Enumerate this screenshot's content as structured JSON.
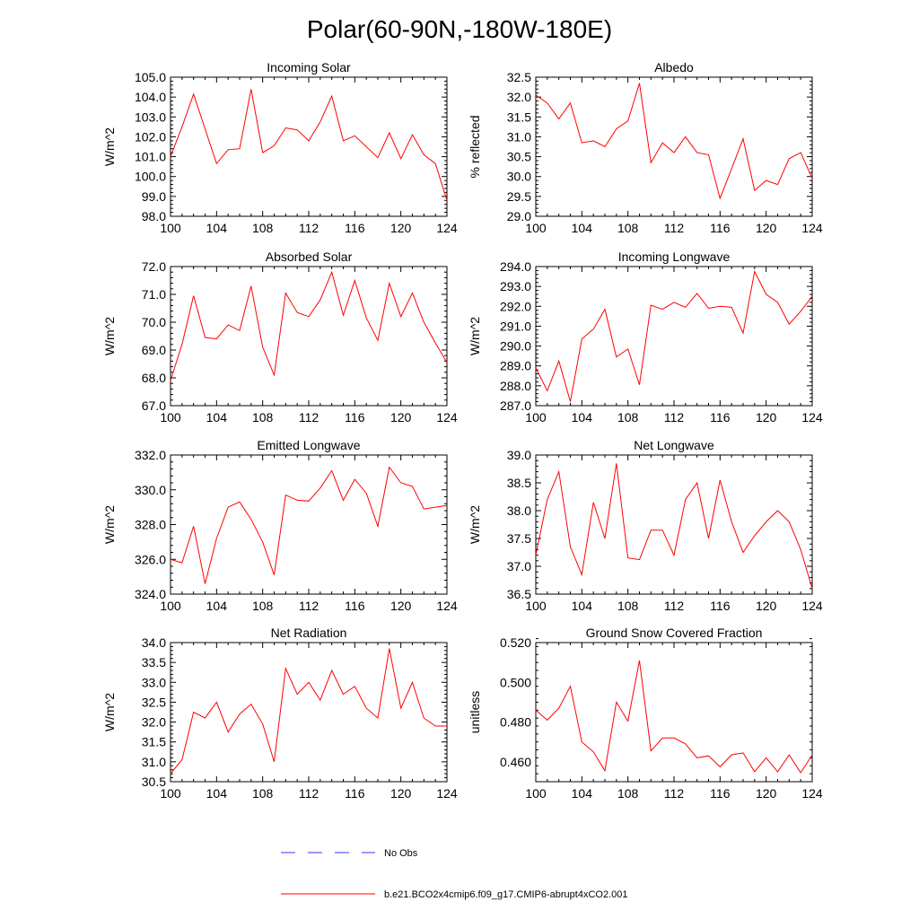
{
  "figure": {
    "title": "Polar(60-90N,-180W-180E)",
    "legend": {
      "obs_label": "No Obs",
      "model_label": "b.e21.BCO2x4cmip6.f09_g17.CMIP6-abrupt4xCO2.001"
    }
  },
  "colors": {
    "model": "#ff0000",
    "obs": "#3333ff",
    "axis": "#000000"
  },
  "chart_data": [
    {
      "type": "line",
      "title": "Incoming Solar",
      "ylabel": "W/m^2",
      "xlabel": "",
      "xlim": [
        100,
        124
      ],
      "ylim": [
        98,
        105
      ],
      "yticks": [
        98,
        99,
        100,
        101,
        102,
        103,
        104,
        105
      ],
      "ytick_labels": [
        "98.0",
        "99.0",
        "100.0",
        "101.0",
        "102.0",
        "103.0",
        "104.0",
        "105.0"
      ],
      "xticks": [
        100,
        104,
        108,
        112,
        116,
        120,
        124
      ],
      "xtick_labels": [
        "100",
        "104",
        "108",
        "112",
        "116",
        "120",
        "124"
      ],
      "series": [
        {
          "name": "b.e21.BCO2x4cmip6.f09_g17.CMIP6-abrupt4xCO2.001",
          "x": [
            100,
            101,
            102,
            103,
            104,
            105,
            106,
            107,
            108,
            109,
            110,
            111,
            112,
            113,
            114,
            115,
            116,
            117,
            118,
            119,
            120,
            121,
            122,
            123,
            124
          ],
          "values": [
            101.0,
            102.5,
            104.15,
            102.4,
            100.65,
            101.35,
            101.4,
            104.4,
            101.2,
            101.55,
            102.45,
            102.35,
            101.8,
            102.75,
            104.05,
            101.8,
            102.05,
            101.5,
            100.95,
            102.2,
            100.9,
            102.1,
            101.1,
            100.65,
            98.8
          ]
        }
      ]
    },
    {
      "type": "line",
      "title": "Albedo",
      "ylabel": "% reflected",
      "xlabel": "",
      "xlim": [
        100,
        124
      ],
      "ylim": [
        29,
        32.5
      ],
      "yticks": [
        29,
        29.5,
        30,
        30.5,
        31,
        31.5,
        32,
        32.5
      ],
      "ytick_labels": [
        "29.0",
        "29.5",
        "30.0",
        "30.5",
        "31.0",
        "31.5",
        "32.0",
        "32.5"
      ],
      "xticks": [
        100,
        104,
        108,
        112,
        116,
        120,
        124
      ],
      "xtick_labels": [
        "100",
        "104",
        "108",
        "112",
        "116",
        "120",
        "124"
      ],
      "series": [
        {
          "name": "b.e21.BCO2x4cmip6.f09_g17.CMIP6-abrupt4xCO2.001",
          "x": [
            100,
            101,
            102,
            103,
            104,
            105,
            106,
            107,
            108,
            109,
            110,
            111,
            112,
            113,
            114,
            115,
            116,
            117,
            118,
            119,
            120,
            121,
            122,
            123,
            124
          ],
          "values": [
            32.05,
            31.85,
            31.45,
            31.85,
            30.85,
            30.9,
            30.75,
            31.2,
            31.4,
            32.35,
            30.35,
            30.85,
            30.6,
            31.0,
            30.6,
            30.55,
            29.45,
            30.2,
            30.95,
            29.65,
            29.9,
            29.8,
            30.45,
            30.6,
            29.95
          ]
        }
      ]
    },
    {
      "type": "line",
      "title": "Absorbed Solar",
      "ylabel": "W/m^2",
      "xlabel": "",
      "xlim": [
        100,
        124
      ],
      "ylim": [
        67,
        72
      ],
      "yticks": [
        67,
        68,
        69,
        70,
        71,
        72
      ],
      "ytick_labels": [
        "67.0",
        "68.0",
        "69.0",
        "70.0",
        "71.0",
        "72.0"
      ],
      "xticks": [
        100,
        104,
        108,
        112,
        116,
        120,
        124
      ],
      "xtick_labels": [
        "100",
        "104",
        "108",
        "112",
        "116",
        "120",
        "124"
      ],
      "series": [
        {
          "name": "b.e21.BCO2x4cmip6.f09_g17.CMIP6-abrupt4xCO2.001",
          "x": [
            100,
            101,
            102,
            103,
            104,
            105,
            106,
            107,
            108,
            109,
            110,
            111,
            112,
            113,
            114,
            115,
            116,
            117,
            118,
            119,
            120,
            121,
            122,
            123,
            124
          ],
          "values": [
            67.9,
            69.2,
            70.95,
            69.45,
            69.4,
            69.9,
            69.7,
            71.3,
            69.1,
            68.1,
            71.05,
            70.35,
            70.2,
            70.8,
            71.8,
            70.25,
            71.5,
            70.15,
            69.35,
            71.4,
            70.2,
            71.05,
            70.0,
            69.25,
            68.55
          ]
        }
      ]
    },
    {
      "type": "line",
      "title": "Incoming Longwave",
      "ylabel": "W/m^2",
      "xlabel": "",
      "xlim": [
        100,
        124
      ],
      "ylim": [
        287,
        294
      ],
      "yticks": [
        287,
        288,
        289,
        290,
        291,
        292,
        293,
        294
      ],
      "ytick_labels": [
        "287.0",
        "288.0",
        "289.0",
        "290.0",
        "291.0",
        "292.0",
        "293.0",
        "294.0"
      ],
      "xticks": [
        100,
        104,
        108,
        112,
        116,
        120,
        124
      ],
      "xtick_labels": [
        "100",
        "104",
        "108",
        "112",
        "116",
        "120",
        "124"
      ],
      "series": [
        {
          "name": "b.e21.BCO2x4cmip6.f09_g17.CMIP6-abrupt4xCO2.001",
          "x": [
            100,
            101,
            102,
            103,
            104,
            105,
            106,
            107,
            108,
            109,
            110,
            111,
            112,
            113,
            114,
            115,
            116,
            117,
            118,
            119,
            120,
            121,
            122,
            123,
            124
          ],
          "values": [
            288.9,
            287.75,
            289.25,
            287.2,
            290.35,
            290.85,
            291.85,
            289.45,
            289.85,
            288.05,
            292.05,
            291.85,
            292.2,
            291.95,
            292.65,
            291.9,
            292.0,
            291.95,
            290.65,
            293.75,
            292.6,
            292.2,
            291.1,
            291.75,
            292.5
          ]
        }
      ]
    },
    {
      "type": "line",
      "title": "Emitted Longwave",
      "ylabel": "W/m^2",
      "xlabel": "",
      "xlim": [
        100,
        124
      ],
      "ylim": [
        324,
        332
      ],
      "yticks": [
        324,
        326,
        328,
        330,
        332
      ],
      "ytick_labels": [
        "324.0",
        "326.0",
        "328.0",
        "330.0",
        "332.0"
      ],
      "xticks": [
        100,
        104,
        108,
        112,
        116,
        120,
        124
      ],
      "xtick_labels": [
        "100",
        "104",
        "108",
        "112",
        "116",
        "120",
        "124"
      ],
      "series": [
        {
          "name": "b.e21.BCO2x4cmip6.f09_g17.CMIP6-abrupt4xCO2.001",
          "x": [
            100,
            101,
            102,
            103,
            104,
            105,
            106,
            107,
            108,
            109,
            110,
            111,
            112,
            113,
            114,
            115,
            116,
            117,
            118,
            119,
            120,
            121,
            122,
            123,
            124
          ],
          "values": [
            326.0,
            325.8,
            327.9,
            324.6,
            327.2,
            329.0,
            329.3,
            328.3,
            327.0,
            325.1,
            329.7,
            329.4,
            329.35,
            330.1,
            331.1,
            329.4,
            330.6,
            329.8,
            327.9,
            331.3,
            330.4,
            330.2,
            328.9,
            329.0,
            329.1
          ]
        }
      ]
    },
    {
      "type": "line",
      "title": "Net Longwave",
      "ylabel": "W/m^2",
      "xlabel": "",
      "xlim": [
        100,
        124
      ],
      "ylim": [
        36.5,
        39
      ],
      "yticks": [
        36.5,
        37,
        37.5,
        38,
        38.5,
        39
      ],
      "ytick_labels": [
        "36.5",
        "37.0",
        "37.5",
        "38.0",
        "38.5",
        "39.0"
      ],
      "xticks": [
        100,
        104,
        108,
        112,
        116,
        120,
        124
      ],
      "xtick_labels": [
        "100",
        "104",
        "108",
        "112",
        "116",
        "120",
        "124"
      ],
      "series": [
        {
          "name": "b.e21.BCO2x4cmip6.f09_g17.CMIP6-abrupt4xCO2.001",
          "x": [
            100,
            101,
            102,
            103,
            104,
            105,
            106,
            107,
            108,
            109,
            110,
            111,
            112,
            113,
            114,
            115,
            116,
            117,
            118,
            119,
            120,
            121,
            122,
            123,
            124
          ],
          "values": [
            37.2,
            38.2,
            38.7,
            37.35,
            36.85,
            38.15,
            37.5,
            38.85,
            37.15,
            37.12,
            37.65,
            37.65,
            37.2,
            38.2,
            38.5,
            37.5,
            38.55,
            37.8,
            37.25,
            37.55,
            37.8,
            38.0,
            37.8,
            37.3,
            36.6
          ]
        }
      ]
    },
    {
      "type": "line",
      "title": "Net Radiation",
      "ylabel": "W/m^2",
      "xlabel": "",
      "xlim": [
        100,
        124
      ],
      "ylim": [
        30.5,
        34
      ],
      "yticks": [
        30.5,
        31,
        31.5,
        32,
        32.5,
        33,
        33.5,
        34
      ],
      "ytick_labels": [
        "30.5",
        "31.0",
        "31.5",
        "32.0",
        "32.5",
        "33.0",
        "33.5",
        "34.0"
      ],
      "xticks": [
        100,
        104,
        108,
        112,
        116,
        120,
        124
      ],
      "xtick_labels": [
        "100",
        "104",
        "108",
        "112",
        "116",
        "120",
        "124"
      ],
      "series": [
        {
          "name": "b.e21.BCO2x4cmip6.f09_g17.CMIP6-abrupt4xCO2.001",
          "x": [
            100,
            101,
            102,
            103,
            104,
            105,
            106,
            107,
            108,
            109,
            110,
            111,
            112,
            113,
            114,
            115,
            116,
            117,
            118,
            119,
            120,
            121,
            122,
            123,
            124
          ],
          "values": [
            30.7,
            31.05,
            32.25,
            32.1,
            32.5,
            31.75,
            32.2,
            32.45,
            31.95,
            31.0,
            33.35,
            32.7,
            33.0,
            32.55,
            33.3,
            32.7,
            32.9,
            32.35,
            32.1,
            33.85,
            32.35,
            33.0,
            32.1,
            31.9,
            31.9
          ]
        }
      ]
    },
    {
      "type": "line",
      "title": "Ground Snow Covered Fraction",
      "ylabel": "unitless",
      "xlabel": "",
      "xlim": [
        100,
        124
      ],
      "ylim": [
        0.45,
        0.52
      ],
      "yticks": [
        0.46,
        0.48,
        0.5,
        0.52
      ],
      "ytick_labels": [
        "0.460",
        "0.480",
        "0.500",
        "0.520"
      ],
      "xticks": [
        100,
        104,
        108,
        112,
        116,
        120,
        124
      ],
      "xtick_labels": [
        "100",
        "104",
        "108",
        "112",
        "116",
        "120",
        "124"
      ],
      "series": [
        {
          "name": "b.e21.BCO2x4cmip6.f09_g17.CMIP6-abrupt4xCO2.001",
          "x": [
            100,
            101,
            102,
            103,
            104,
            105,
            106,
            107,
            108,
            109,
            110,
            111,
            112,
            113,
            114,
            115,
            116,
            117,
            118,
            119,
            120,
            121,
            122,
            123,
            124
          ],
          "values": [
            0.486,
            0.481,
            0.487,
            0.498,
            0.47,
            0.465,
            0.4555,
            0.49,
            0.4805,
            0.511,
            0.4655,
            0.472,
            0.472,
            0.469,
            0.462,
            0.463,
            0.4575,
            0.4635,
            0.4645,
            0.455,
            0.462,
            0.455,
            0.4635,
            0.4545,
            0.4635
          ]
        }
      ]
    }
  ]
}
